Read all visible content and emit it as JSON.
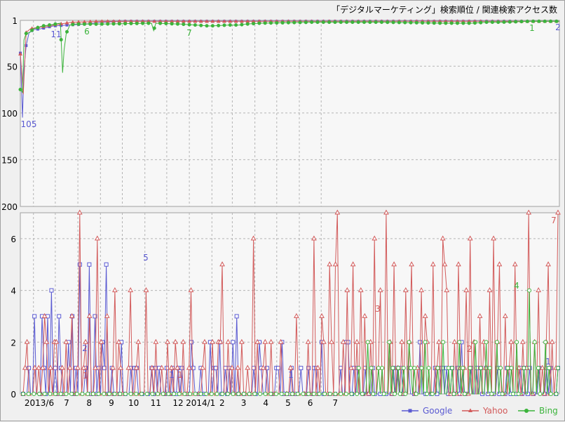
{
  "chart_data": [
    {
      "type": "line",
      "title": "「デジタルマーケティング」検索順位 / 関連検索アクセス数",
      "yscale": "inverted",
      "ylim": [
        1,
        200
      ],
      "yticks": [
        "1",
        "50",
        "100",
        "150",
        "200"
      ],
      "grid": true,
      "annotations": [
        {
          "series": "Google",
          "text": "105"
        },
        {
          "series": "Google",
          "text": "11"
        },
        {
          "series": "Bing",
          "text": "6"
        },
        {
          "series": "Bing",
          "text": "7"
        },
        {
          "series": "Bing",
          "text": "1"
        },
        {
          "series": "Google",
          "text": "2"
        }
      ],
      "series": [
        {
          "name": "Google",
          "color": "#5a5ad2",
          "points": [
            [
              0,
              36
            ],
            [
              3,
              105
            ],
            [
              5,
              53
            ],
            [
              8,
              28
            ],
            [
              12,
              14
            ],
            [
              18,
              11
            ],
            [
              28,
              10
            ],
            [
              45,
              7
            ],
            [
              65,
              6
            ],
            [
              90,
              5
            ],
            [
              110,
              3
            ],
            [
              140,
              2
            ],
            [
              200,
              2
            ],
            [
              400,
              2
            ],
            [
              600,
              2
            ],
            [
              681,
              2
            ],
            [
              700,
              2
            ],
            [
              720,
              2
            ],
            [
              740,
              2
            ]
          ]
        },
        {
          "name": "Yahoo",
          "color": "#d25a5a",
          "points": [
            [
              0,
              37
            ],
            [
              4,
              80
            ],
            [
              8,
              14
            ],
            [
              14,
              10
            ],
            [
              20,
              9
            ],
            [
              30,
              8
            ],
            [
              45,
              6
            ],
            [
              70,
              3
            ],
            [
              110,
              2
            ],
            [
              200,
              2
            ],
            [
              400,
              2
            ],
            [
              600,
              2
            ],
            [
              681,
              2
            ],
            [
              740,
              2
            ]
          ]
        },
        {
          "name": "Bing",
          "color": "#3cb43c",
          "points": [
            [
              0,
              75
            ],
            [
              3,
              78
            ],
            [
              5,
              22
            ],
            [
              8,
              15
            ],
            [
              13,
              14
            ],
            [
              18,
              10
            ],
            [
              23,
              9
            ],
            [
              30,
              7
            ],
            [
              40,
              6
            ],
            [
              48,
              5
            ],
            [
              55,
              4
            ],
            [
              58,
              57
            ],
            [
              60,
              33
            ],
            [
              63,
              15
            ],
            [
              68,
              6
            ],
            [
              75,
              5
            ],
            [
              110,
              5
            ],
            [
              180,
              4
            ],
            [
              183,
              12
            ],
            [
              186,
              4
            ],
            [
              220,
              5
            ],
            [
              260,
              7
            ],
            [
              285,
              6
            ],
            [
              300,
              6
            ],
            [
              310,
              5
            ],
            [
              330,
              4
            ],
            [
              400,
              3
            ],
            [
              500,
              3
            ],
            [
              580,
              4
            ],
            [
              620,
              4
            ],
            [
              640,
              3
            ],
            [
              660,
              3
            ],
            [
              700,
              2
            ],
            [
              740,
              2
            ]
          ]
        }
      ]
    },
    {
      "type": "line",
      "ylim": [
        0,
        7
      ],
      "yticks": [
        "0",
        "2",
        "4",
        "6"
      ],
      "xticks": [
        "2013/6",
        "7",
        "8",
        "9",
        "10",
        "11",
        "12",
        "2014/1",
        "2",
        "3",
        "4",
        "5",
        "6",
        "7"
      ],
      "grid": true,
      "legend_position": "bottom-right",
      "annotations": [
        {
          "series": "Google",
          "text": "5"
        },
        {
          "series": "Google",
          "text": "2"
        },
        {
          "series": "Yahoo",
          "text": "1"
        },
        {
          "series": "Google",
          "text": "1"
        },
        {
          "series": "Google",
          "text": "1"
        },
        {
          "series": "Yahoo",
          "text": "1"
        },
        {
          "series": "Yahoo",
          "text": "3"
        },
        {
          "series": "Yahoo",
          "text": "2"
        },
        {
          "series": "Bing",
          "text": "4"
        },
        {
          "series": "Google",
          "text": "1"
        },
        {
          "series": "Yahoo",
          "text": "7"
        }
      ],
      "series": [
        {
          "name": "Google",
          "color": "#5a5ad2",
          "marker": "square",
          "values": [
            0,
            0,
            0,
            1,
            0,
            0,
            3,
            0,
            0,
            0,
            3,
            1,
            0,
            3,
            0,
            4,
            0,
            1,
            0,
            3,
            1,
            0,
            0,
            0,
            2,
            0,
            3,
            0,
            1,
            0,
            5,
            0,
            0,
            1,
            0,
            5,
            0,
            0,
            3,
            0,
            1,
            0,
            2,
            1,
            5,
            0,
            0,
            1,
            0,
            0,
            0,
            0,
            2,
            0,
            0,
            0,
            0,
            1,
            0,
            1,
            1,
            0,
            0,
            0,
            0,
            0,
            0,
            0,
            1,
            0,
            1,
            0,
            1,
            0,
            0,
            0,
            1,
            0,
            0,
            1,
            0,
            0,
            1,
            0,
            1,
            0,
            0,
            0,
            0,
            2,
            1,
            0,
            0,
            0,
            1,
            0,
            0,
            0,
            0,
            2,
            0,
            1,
            1,
            0,
            2,
            0,
            0,
            1,
            0,
            1,
            0,
            2,
            0,
            3,
            0,
            0,
            0,
            0,
            0,
            0,
            0,
            0,
            1,
            0,
            0,
            2,
            1,
            0,
            0,
            1,
            0,
            0,
            0,
            0,
            1,
            1,
            0,
            2,
            0,
            0,
            0,
            0,
            1,
            0,
            0,
            0,
            0,
            1,
            0,
            0,
            0,
            1,
            0,
            0,
            1,
            1,
            0,
            0,
            2,
            0,
            0,
            0,
            0,
            0,
            0,
            0,
            0,
            0,
            1,
            0,
            0,
            2,
            2,
            0,
            0,
            1,
            0,
            1,
            0,
            0,
            0,
            1,
            0,
            0,
            0,
            1,
            0,
            0,
            0,
            0,
            0,
            0,
            0,
            0,
            0,
            0,
            1,
            0,
            1,
            0,
            1,
            0,
            0,
            0,
            1,
            0,
            0,
            0,
            0,
            0,
            2,
            0,
            0,
            0,
            0,
            0,
            0,
            0,
            1,
            0,
            0,
            1,
            1,
            0,
            1,
            0,
            0,
            1,
            0,
            0,
            1,
            0,
            2,
            0,
            0,
            0,
            0,
            1,
            0,
            0,
            1,
            0,
            1,
            0,
            0,
            1,
            0,
            0,
            0,
            0,
            0,
            1,
            0,
            0,
            0,
            0,
            1,
            1,
            0,
            0,
            0,
            0,
            0,
            1,
            0,
            1,
            0,
            0,
            1,
            0,
            0,
            0,
            0,
            1,
            0,
            0,
            0,
            1,
            0,
            1,
            0,
            0,
            0,
            1
          ]
        },
        {
          "name": "Yahoo",
          "color": "#d25a5a",
          "marker": "triangle",
          "values": [
            0,
            1,
            2,
            0,
            0,
            0,
            1,
            0,
            1,
            0,
            1,
            3,
            2,
            0,
            1,
            0,
            2,
            2,
            0,
            0,
            1,
            0,
            2,
            0,
            1,
            3,
            0,
            0,
            1,
            7,
            0,
            1,
            2,
            0,
            3,
            0,
            0,
            1,
            6,
            0,
            2,
            0,
            0,
            3,
            0,
            0,
            1,
            4,
            0,
            2,
            1,
            0,
            0,
            0,
            1,
            4,
            0,
            0,
            1,
            2,
            0,
            0,
            0,
            4,
            0,
            0,
            1,
            0,
            2,
            0,
            0,
            1,
            0,
            0,
            2,
            0,
            1,
            0,
            2,
            1,
            0,
            0,
            2,
            0,
            0,
            1,
            4,
            0,
            0,
            0,
            0,
            0,
            1,
            2,
            0,
            0,
            0,
            2,
            0,
            0,
            2,
            2,
            5,
            0,
            0,
            2,
            0,
            1,
            0,
            0,
            1,
            0,
            2,
            0,
            0,
            1,
            0,
            0,
            6,
            0,
            2,
            0,
            0,
            1,
            2,
            0,
            0,
            2,
            0,
            0,
            0,
            0,
            2,
            0,
            0,
            0,
            0,
            1,
            0,
            0,
            3,
            0,
            0,
            0,
            0,
            0,
            2,
            0,
            0,
            6,
            0,
            1,
            0,
            3,
            2,
            0,
            0,
            5,
            2,
            0,
            5,
            7,
            0,
            0,
            2,
            0,
            4,
            0,
            1,
            5,
            0,
            2,
            0,
            4,
            0,
            3,
            0,
            0,
            2,
            0,
            6,
            0,
            1,
            4,
            0,
            0,
            7,
            0,
            2,
            0,
            5,
            0,
            1,
            0,
            2,
            0,
            4,
            0,
            2,
            5,
            0,
            0,
            1,
            0,
            4,
            0,
            3,
            2,
            0,
            0,
            5,
            0,
            1,
            2,
            0,
            6,
            5,
            4,
            0,
            0,
            0,
            2,
            0,
            5,
            1,
            0,
            1,
            4,
            0,
            6,
            0,
            2,
            0,
            0,
            3,
            0,
            2,
            1,
            0,
            4,
            0,
            6,
            0,
            2,
            5,
            0,
            0,
            3,
            0,
            1,
            2,
            0,
            5,
            0,
            1,
            0,
            2,
            0,
            1,
            7,
            0,
            0,
            2,
            0,
            4,
            0,
            1,
            0,
            2,
            5,
            0,
            2,
            0,
            1,
            7
          ]
        },
        {
          "name": "Bing",
          "color": "#3cb43c",
          "marker": "circle",
          "values": [
            0,
            0,
            0,
            0,
            0,
            0,
            0,
            0,
            0,
            0,
            0,
            0,
            0,
            0,
            0,
            0,
            0,
            0,
            0,
            0,
            0,
            0,
            0,
            0,
            0,
            0,
            0,
            0,
            0,
            0,
            0,
            0,
            0,
            0,
            0,
            0,
            0,
            0,
            0,
            0,
            0,
            0,
            0,
            0,
            0,
            0,
            0,
            0,
            0,
            0,
            0,
            0,
            0,
            0,
            0,
            0,
            0,
            0,
            0,
            0,
            0,
            0,
            0,
            0,
            0,
            0,
            0,
            0,
            0,
            0,
            0,
            0,
            0,
            0,
            0,
            0,
            0,
            0,
            0,
            0,
            0,
            0,
            0,
            0,
            0,
            0,
            0,
            0,
            0,
            0,
            0,
            0,
            0,
            0,
            0,
            0,
            0,
            0,
            0,
            0,
            0,
            0,
            0,
            0,
            0,
            0,
            0,
            0,
            0,
            0,
            0,
            0,
            0,
            0,
            0,
            0,
            0,
            0,
            0,
            0,
            0,
            0,
            0,
            0,
            0,
            0,
            0,
            0,
            0,
            0,
            0,
            0,
            0,
            0,
            0,
            0,
            0,
            0,
            0,
            0,
            0,
            0,
            0,
            0,
            0,
            0,
            0,
            0,
            0,
            0,
            0,
            0,
            0,
            0,
            0,
            0,
            0,
            0,
            0,
            0,
            0,
            0,
            0,
            0,
            0,
            0,
            0,
            0,
            0,
            0,
            0,
            0,
            0,
            0,
            0,
            0,
            0,
            0,
            0,
            0,
            0,
            0,
            0,
            0,
            0,
            0,
            0,
            1,
            0,
            0,
            0,
            0,
            2,
            0,
            1,
            0,
            0,
            0,
            1,
            0,
            1,
            0,
            0,
            0,
            2,
            0,
            1,
            0,
            0,
            1,
            0,
            0,
            1,
            0,
            0,
            2,
            1,
            0,
            1,
            0,
            0,
            0,
            1,
            0,
            2,
            0,
            1,
            0,
            0,
            0,
            0,
            1,
            0,
            0,
            2,
            0,
            0,
            1,
            0,
            1,
            0,
            0,
            0,
            2,
            0,
            1,
            0,
            0,
            0,
            1,
            0,
            0,
            2,
            0,
            0,
            1,
            0,
            0,
            2,
            0,
            1,
            0,
            0,
            0,
            2,
            0,
            1,
            0,
            0,
            0,
            1,
            0,
            1,
            0,
            0,
            2,
            0,
            0,
            0,
            1,
            0,
            0,
            4,
            0,
            0,
            2,
            0,
            1,
            0,
            0,
            0,
            2,
            0,
            1,
            0,
            0,
            0,
            0,
            1
          ]
        }
      ]
    }
  ]
}
